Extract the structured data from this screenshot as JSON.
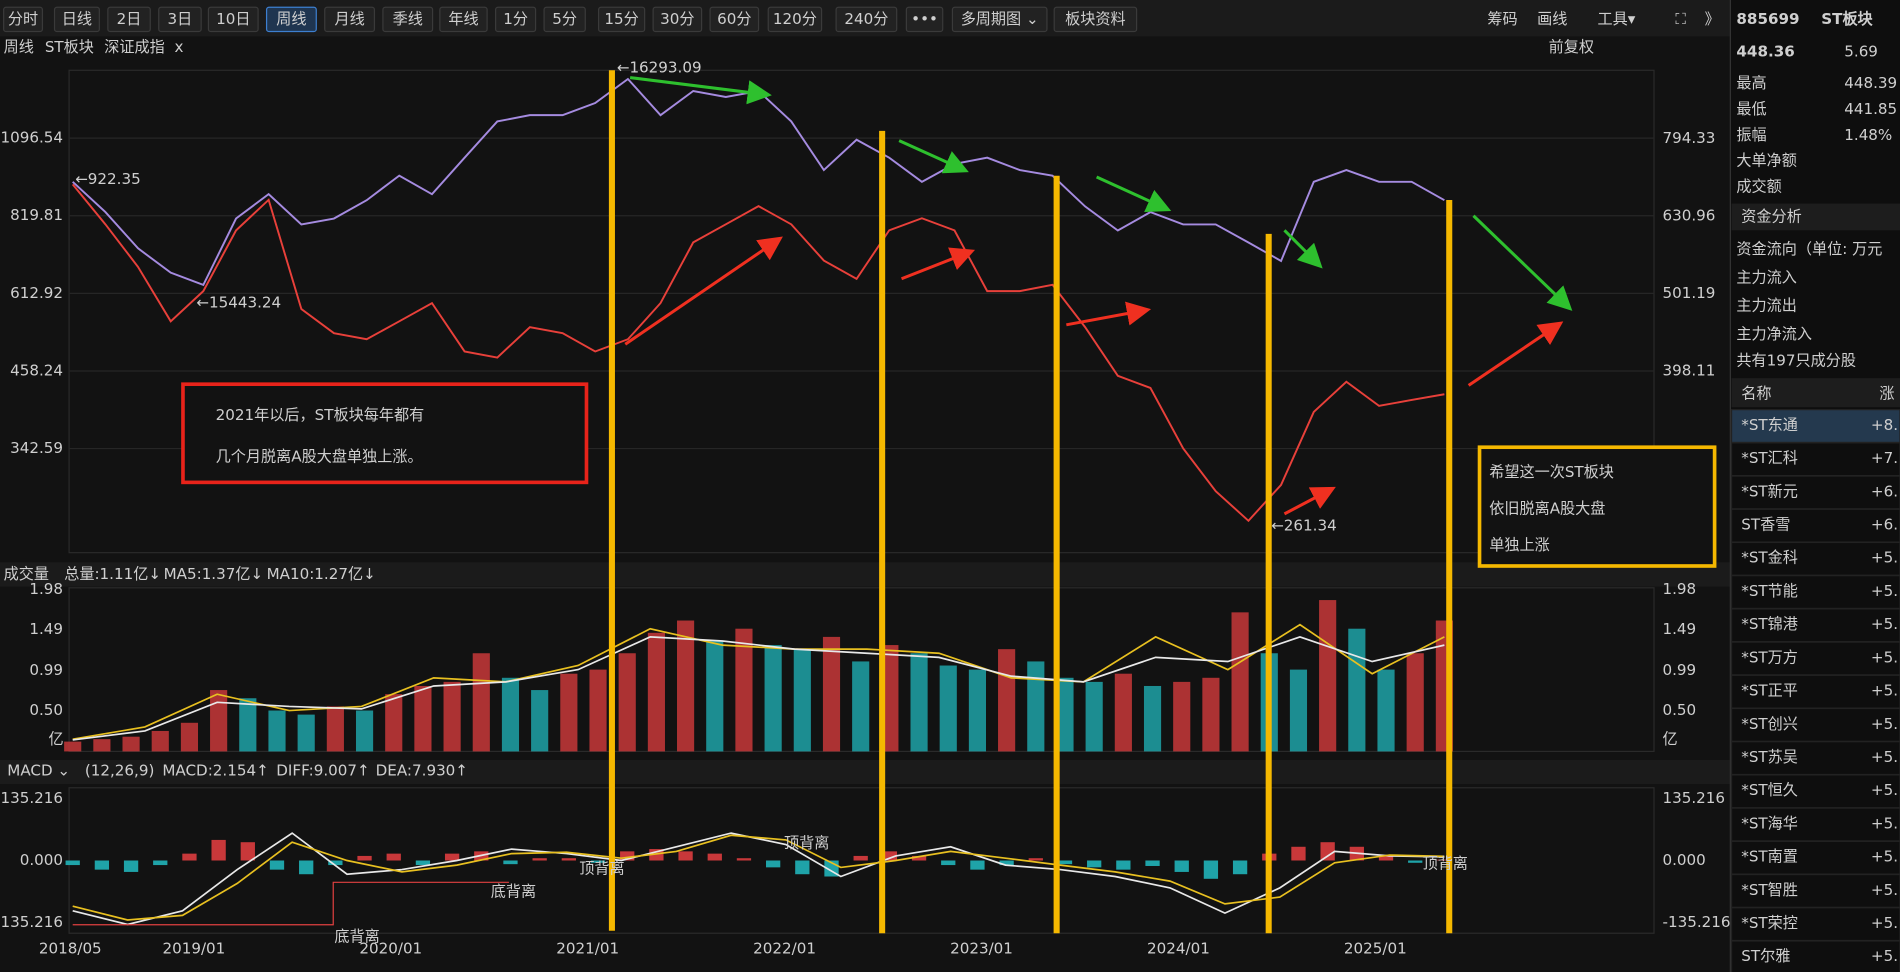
{
  "toolbar": {
    "periods": [
      "分时",
      "日线",
      "2日",
      "3日",
      "10日",
      "周线",
      "月线",
      "季线",
      "年线",
      "1分",
      "5分",
      "15分",
      "30分",
      "60分",
      "120分",
      "240分"
    ],
    "more": "•••",
    "multi_period": "多周期图 ⌄",
    "sector_info": "板块资料",
    "right": [
      "筹码",
      "画线",
      "工具▾",
      "⛶",
      "》"
    ]
  },
  "chart_header": {
    "period": "周线",
    "name": "ST板块",
    "compare": "深证成指",
    "close": "x",
    "adjust": "前复权"
  },
  "price_chart": {
    "type": "line",
    "log_scale": true,
    "grid": true,
    "ylim": [
      233,
      1414
    ],
    "yticks": [
      342.59,
      458.24,
      612.92,
      819.81,
      1096.54
    ],
    "y2lim": [
      233,
      972
    ],
    "y2ticks": [
      398.11,
      501.19,
      630.96,
      794.33
    ],
    "series": [
      {
        "color": "#e8403a",
        "values": [
          922.35,
          794,
          677,
          552,
          618,
          776,
          870,
          578,
          528,
          516,
          552,
          591,
          493,
          482,
          540,
          528,
          493,
          516,
          591,
          742,
          794,
          850,
          794,
          693,
          647,
          776,
          812,
          776,
          618,
          618,
          633,
          540,
          450,
          430,
          343,
          292,
          261.34,
          299,
          393,
          440,
          402,
          411,
          420
        ]
      },
      {
        "color": "#a58be0",
        "axis": "y2",
        "values": [
          698,
          638,
          573,
          533,
          514,
          626,
          673,
          615,
          626,
          661,
          711,
          673,
          750,
          835,
          851,
          851,
          882,
          947,
          851,
          914,
          898,
          914,
          835,
          723,
          791,
          750,
          698,
          736,
          750,
          723,
          711,
          649,
          604,
          638,
          615,
          615,
          583,
          552,
          698,
          723,
          698,
          698,
          661
        ]
      }
    ],
    "marks": [
      "←16293.09",
      "←922.35",
      "←15443.24",
      "←261.34"
    ],
    "notes": [
      [
        "2021年以后，ST板块每年都有",
        "几个月脱离A股大盘单独上涨。"
      ],
      [
        "希望这一次ST板块",
        "依旧脱离A股大盘",
        "单独上涨"
      ]
    ]
  },
  "volume_chart": {
    "label": "成交量",
    "total": "总量:1.11亿↓",
    "ma5": "MA5:1.37亿↓",
    "ma10": "MA10:1.27亿↓",
    "ylim": [
      0,
      2
    ],
    "yticks": [
      {
        "value": 0.5,
        "label": "0.50"
      },
      0.99,
      1.49,
      1.98
    ],
    "unit": "亿",
    "values": [
      0.12,
      0.15,
      0.18,
      0.25,
      0.35,
      0.75,
      0.65,
      0.5,
      0.45,
      0.55,
      0.5,
      0.7,
      0.8,
      0.85,
      1.2,
      0.9,
      0.75,
      0.95,
      1.0,
      1.2,
      1.45,
      1.6,
      1.35,
      1.5,
      1.3,
      1.25,
      1.4,
      1.1,
      1.3,
      1.2,
      1.05,
      1.0,
      1.25,
      1.1,
      0.9,
      0.85,
      0.95,
      0.8,
      0.85,
      0.9,
      1.7,
      1.2,
      1.0,
      1.85,
      1.5,
      1.0,
      1.2,
      1.6
    ],
    "lines": [
      {
        "color": "#e8c020",
        "values": [
          0.15,
          0.3,
          0.7,
          0.5,
          0.55,
          0.9,
          0.85,
          1.05,
          1.5,
          1.3,
          1.25,
          1.25,
          1.2,
          0.9,
          0.85,
          1.4,
          1.0,
          1.55,
          0.95,
          1.4
        ]
      },
      {
        "color": "#e8e8e8",
        "values": [
          0.14,
          0.25,
          0.6,
          0.55,
          0.52,
          0.8,
          0.85,
          1.0,
          1.4,
          1.35,
          1.25,
          1.2,
          1.15,
          0.92,
          0.85,
          1.15,
          1.1,
          1.4,
          1.1,
          1.3
        ]
      }
    ]
  },
  "macd_chart": {
    "label": "MACD ⌄",
    "params": "(12,26,9)",
    "macd": "MACD:2.154↑",
    "diff": "DIFF:9.007↑",
    "dea": "DEA:7.930↑",
    "ylim": [
      -159,
      159
    ],
    "yticks": [
      -135.216,
      {
        "value": 0,
        "label": "0.000"
      },
      135.216
    ],
    "values": [
      -10,
      -20,
      -25,
      -10,
      15,
      45,
      40,
      -20,
      -30,
      -10,
      10,
      15,
      -10,
      15,
      20,
      -8,
      5,
      5,
      -5,
      20,
      25,
      20,
      15,
      5,
      -15,
      -30,
      -35,
      10,
      20,
      10,
      -10,
      -20,
      -10,
      5,
      -8,
      -15,
      -20,
      -12,
      -25,
      -40,
      -30,
      15,
      30,
      40,
      30,
      10,
      -5,
      2
    ],
    "lines": [
      {
        "color": "#e8e8e8",
        "values": [
          -110,
          -140,
          -110,
          -20,
          60,
          -30,
          -20,
          0,
          25,
          15,
          0,
          30,
          60,
          35,
          -35,
          10,
          30,
          -10,
          -20,
          -35,
          -60,
          -115,
          -60,
          20,
          10,
          8
        ]
      },
      {
        "color": "#e8c020",
        "values": [
          -100,
          -130,
          -120,
          -50,
          40,
          0,
          -25,
          -10,
          15,
          18,
          5,
          20,
          55,
          45,
          -15,
          0,
          20,
          5,
          -10,
          -25,
          -45,
          -95,
          -80,
          -5,
          12,
          9
        ]
      }
    ],
    "notes": [
      "底背离",
      "底背离",
      "顶背离",
      "顶背离",
      "顶背离"
    ]
  },
  "x_axis": {
    "labels": [
      "2018/05",
      "2019/01",
      "2020/01",
      "2021/01",
      "2022/01",
      "2023/01",
      "2024/01",
      "2025/01"
    ]
  },
  "side_panel": {
    "code": "885699",
    "name": "ST板块",
    "price": 448.36,
    "change": 5.69,
    "stats": [
      {
        "label": "最高",
        "value": 448.39
      },
      {
        "label": "最低",
        "value": 441.85
      },
      {
        "label": "振幅",
        "value": "1.48%"
      }
    ],
    "extra_labels": [
      "大单净额",
      "成交额"
    ],
    "fund_section": "资金分析",
    "fund_rows": [
      "资金流向（单位: 万元",
      "主力流入",
      "主力流出",
      "主力净流入"
    ],
    "constituents": "共有197只成分股",
    "table": {
      "header": [
        "名称",
        "涨"
      ],
      "rows": [
        [
          "*ST东通",
          "+8."
        ],
        [
          "*ST汇科",
          "+7."
        ],
        [
          "*ST新元",
          "+6."
        ],
        [
          "ST香雪",
          "+6."
        ],
        [
          "*ST金科",
          "+5."
        ],
        [
          "*ST节能",
          "+5."
        ],
        [
          "*ST锦港",
          "+5."
        ],
        [
          "*ST万方",
          "+5."
        ],
        [
          "*ST正平",
          "+5."
        ],
        [
          "*ST创兴",
          "+5."
        ],
        [
          "*ST苏吴",
          "+5."
        ],
        [
          "*ST恒久",
          "+5."
        ],
        [
          "*ST海华",
          "+5."
        ],
        [
          "*ST南置",
          "+5."
        ],
        [
          "*ST智胜",
          "+5."
        ],
        [
          "*ST荣控",
          "+5."
        ],
        [
          "ST尔雅",
          "+5."
        ]
      ]
    }
  }
}
